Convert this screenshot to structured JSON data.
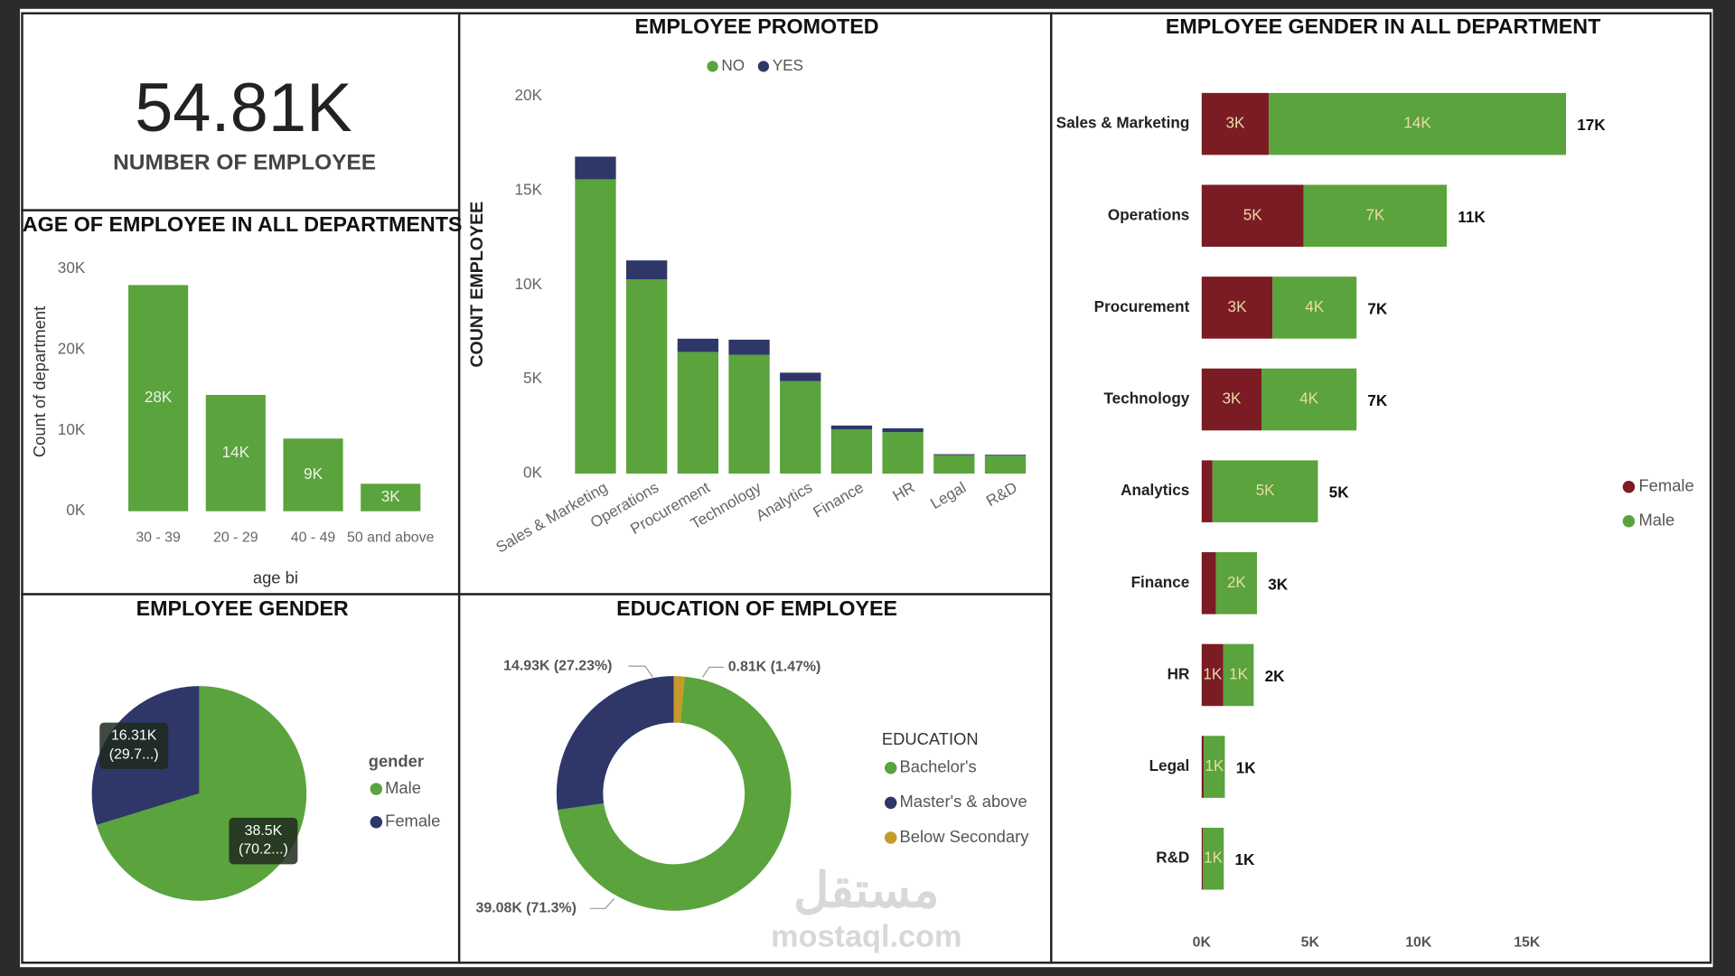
{
  "kpi": {
    "value": 54810,
    "label": "54.81K",
    "caption": "NUMBER OF EMPLOYEE"
  },
  "watermark": {
    "arabic": "مستقل",
    "latin": "mostaql.com"
  },
  "chart_data": [
    {
      "type": "bar",
      "title": "AGE OF EMPLOYEE IN ALL DEPARTMENTS",
      "y_label": "Count of department",
      "x_label": "age bi",
      "categories": [
        "30 - 39",
        "20 - 29",
        "40 - 49",
        "50 and above"
      ],
      "values": [
        28000,
        14400,
        9000,
        3400
      ],
      "value_labels": [
        "28K",
        "14K",
        "9K",
        "3K"
      ],
      "color": "#5aa33d",
      "ylim": [
        0,
        30000
      ],
      "yticks": [
        {
          "value": 0,
          "label": "0K"
        },
        {
          "value": 10000,
          "label": "10K"
        },
        {
          "value": 20000,
          "label": "20K"
        },
        {
          "value": 30000,
          "label": "30K"
        }
      ],
      "grid": false
    },
    {
      "type": "stacked_bar",
      "title": "EMPLOYEE PROMOTED",
      "y_label": "COUNT EMPLOYEE",
      "categories": [
        "Sales & Marketing",
        "Operations",
        "Procurement",
        "Technology",
        "Analytics",
        "Finance",
        "HR",
        "Legal",
        "R&D"
      ],
      "series": [
        {
          "name": "NO",
          "color": "#5aa33d",
          "values": [
            15600,
            10300,
            6450,
            6300,
            4900,
            2350,
            2200,
            980,
            950
          ]
        },
        {
          "name": "YES",
          "color": "#2e3768",
          "values": [
            1200,
            1000,
            700,
            800,
            450,
            200,
            200,
            50,
            50
          ]
        }
      ],
      "ylim": [
        0,
        20000
      ],
      "yticks": [
        {
          "value": 0,
          "label": "0K"
        },
        {
          "value": 5000,
          "label": "5K"
        },
        {
          "value": 10000,
          "label": "10K"
        },
        {
          "value": 15000,
          "label": "15K"
        },
        {
          "value": 20000,
          "label": "20K"
        }
      ],
      "grid": false,
      "legend": "top"
    },
    {
      "type": "stacked_barh",
      "title": "EMPLOYEE GENDER IN ALL DEPARTMENT",
      "categories": [
        "Sales & Marketing",
        "Operations",
        "Procurement",
        "Technology",
        "Analytics",
        "Finance",
        "HR",
        "Legal",
        "R&D"
      ],
      "series": [
        {
          "name": "Female",
          "color": "#7b1c24",
          "values": [
            3100,
            4700,
            3270,
            2760,
            500,
            660,
            1000,
            100,
            50
          ],
          "value_labels": [
            "3K",
            "5K",
            "3K",
            "3K",
            null,
            null,
            "1K",
            null,
            null
          ]
        },
        {
          "name": "Male",
          "color": "#5aa33d",
          "values": [
            13700,
            6600,
            3870,
            4380,
            4860,
            1890,
            1400,
            970,
            970
          ],
          "value_labels": [
            "14K",
            "7K",
            "4K",
            "4K",
            "5K",
            "2K",
            "1K",
            "1K",
            "1K"
          ]
        }
      ],
      "totals": [
        16800,
        11300,
        7140,
        7140,
        5360,
        2550,
        2400,
        1070,
        1020
      ],
      "total_labels": [
        "17K",
        "11K",
        "7K",
        "7K",
        "5K",
        "3K",
        "2K",
        "1K",
        "1K"
      ],
      "xlim": [
        0,
        17500
      ],
      "xticks": [
        {
          "value": 0,
          "label": "0K"
        },
        {
          "value": 5000,
          "label": "5K"
        },
        {
          "value": 10000,
          "label": "10K"
        },
        {
          "value": 15000,
          "label": "15K"
        }
      ],
      "grid": false,
      "legend": "right"
    },
    {
      "type": "pie",
      "title": "EMPLOYEE GENDER",
      "legend_title": "gender",
      "categories": [
        "Male",
        "Female"
      ],
      "values": [
        38500,
        16310
      ],
      "colors": [
        "#5aa33d",
        "#2e3768"
      ],
      "value_labels": [
        "38.5K",
        "16.31K"
      ],
      "percent_labels": [
        "(70.2...)",
        "(29.7...)"
      ],
      "legend": "right"
    },
    {
      "type": "donut",
      "title": "EDUCATION OF EMPLOYEE",
      "legend_title": "EDUCATION",
      "categories": [
        "Bachelor's",
        "Master's & above",
        "Below Secondary"
      ],
      "values": [
        39080,
        14930,
        810
      ],
      "colors": [
        "#5aa33d",
        "#2e3768",
        "#c59a2a"
      ],
      "value_labels": [
        "39.08K (71.3%)",
        "14.93K (27.23%)",
        "0.81K (1.47%)"
      ],
      "legend": "right"
    }
  ]
}
